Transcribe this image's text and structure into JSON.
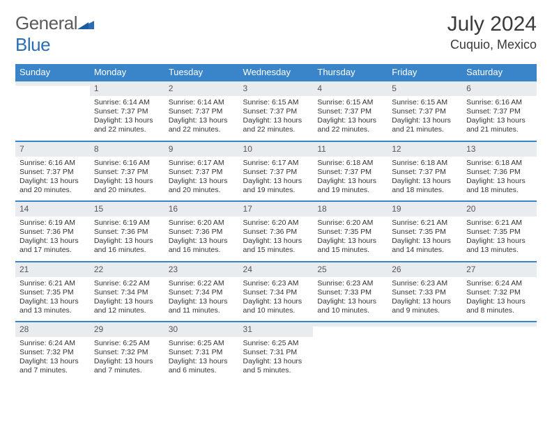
{
  "brand": {
    "part1": "General",
    "part2": "Blue",
    "text_color": "#5a5a5a",
    "accent_color": "#2a6db5"
  },
  "title": {
    "month": "July 2024",
    "location": "Cuquio, Mexico"
  },
  "colors": {
    "header_bg": "#3a85c9",
    "header_text": "#ffffff",
    "daynum_bg": "#e9ecef",
    "border": "#3a85c9",
    "body_text": "#333333"
  },
  "weekdays": [
    "Sunday",
    "Monday",
    "Tuesday",
    "Wednesday",
    "Thursday",
    "Friday",
    "Saturday"
  ],
  "weeks": [
    [
      {
        "n": "",
        "sunrise": "",
        "sunset": "",
        "daylight": ""
      },
      {
        "n": "1",
        "sunrise": "Sunrise: 6:14 AM",
        "sunset": "Sunset: 7:37 PM",
        "daylight": "Daylight: 13 hours and 22 minutes."
      },
      {
        "n": "2",
        "sunrise": "Sunrise: 6:14 AM",
        "sunset": "Sunset: 7:37 PM",
        "daylight": "Daylight: 13 hours and 22 minutes."
      },
      {
        "n": "3",
        "sunrise": "Sunrise: 6:15 AM",
        "sunset": "Sunset: 7:37 PM",
        "daylight": "Daylight: 13 hours and 22 minutes."
      },
      {
        "n": "4",
        "sunrise": "Sunrise: 6:15 AM",
        "sunset": "Sunset: 7:37 PM",
        "daylight": "Daylight: 13 hours and 22 minutes."
      },
      {
        "n": "5",
        "sunrise": "Sunrise: 6:15 AM",
        "sunset": "Sunset: 7:37 PM",
        "daylight": "Daylight: 13 hours and 21 minutes."
      },
      {
        "n": "6",
        "sunrise": "Sunrise: 6:16 AM",
        "sunset": "Sunset: 7:37 PM",
        "daylight": "Daylight: 13 hours and 21 minutes."
      }
    ],
    [
      {
        "n": "7",
        "sunrise": "Sunrise: 6:16 AM",
        "sunset": "Sunset: 7:37 PM",
        "daylight": "Daylight: 13 hours and 20 minutes."
      },
      {
        "n": "8",
        "sunrise": "Sunrise: 6:16 AM",
        "sunset": "Sunset: 7:37 PM",
        "daylight": "Daylight: 13 hours and 20 minutes."
      },
      {
        "n": "9",
        "sunrise": "Sunrise: 6:17 AM",
        "sunset": "Sunset: 7:37 PM",
        "daylight": "Daylight: 13 hours and 20 minutes."
      },
      {
        "n": "10",
        "sunrise": "Sunrise: 6:17 AM",
        "sunset": "Sunset: 7:37 PM",
        "daylight": "Daylight: 13 hours and 19 minutes."
      },
      {
        "n": "11",
        "sunrise": "Sunrise: 6:18 AM",
        "sunset": "Sunset: 7:37 PM",
        "daylight": "Daylight: 13 hours and 19 minutes."
      },
      {
        "n": "12",
        "sunrise": "Sunrise: 6:18 AM",
        "sunset": "Sunset: 7:37 PM",
        "daylight": "Daylight: 13 hours and 18 minutes."
      },
      {
        "n": "13",
        "sunrise": "Sunrise: 6:18 AM",
        "sunset": "Sunset: 7:36 PM",
        "daylight": "Daylight: 13 hours and 18 minutes."
      }
    ],
    [
      {
        "n": "14",
        "sunrise": "Sunrise: 6:19 AM",
        "sunset": "Sunset: 7:36 PM",
        "daylight": "Daylight: 13 hours and 17 minutes."
      },
      {
        "n": "15",
        "sunrise": "Sunrise: 6:19 AM",
        "sunset": "Sunset: 7:36 PM",
        "daylight": "Daylight: 13 hours and 16 minutes."
      },
      {
        "n": "16",
        "sunrise": "Sunrise: 6:20 AM",
        "sunset": "Sunset: 7:36 PM",
        "daylight": "Daylight: 13 hours and 16 minutes."
      },
      {
        "n": "17",
        "sunrise": "Sunrise: 6:20 AM",
        "sunset": "Sunset: 7:36 PM",
        "daylight": "Daylight: 13 hours and 15 minutes."
      },
      {
        "n": "18",
        "sunrise": "Sunrise: 6:20 AM",
        "sunset": "Sunset: 7:35 PM",
        "daylight": "Daylight: 13 hours and 15 minutes."
      },
      {
        "n": "19",
        "sunrise": "Sunrise: 6:21 AM",
        "sunset": "Sunset: 7:35 PM",
        "daylight": "Daylight: 13 hours and 14 minutes."
      },
      {
        "n": "20",
        "sunrise": "Sunrise: 6:21 AM",
        "sunset": "Sunset: 7:35 PM",
        "daylight": "Daylight: 13 hours and 13 minutes."
      }
    ],
    [
      {
        "n": "21",
        "sunrise": "Sunrise: 6:21 AM",
        "sunset": "Sunset: 7:35 PM",
        "daylight": "Daylight: 13 hours and 13 minutes."
      },
      {
        "n": "22",
        "sunrise": "Sunrise: 6:22 AM",
        "sunset": "Sunset: 7:34 PM",
        "daylight": "Daylight: 13 hours and 12 minutes."
      },
      {
        "n": "23",
        "sunrise": "Sunrise: 6:22 AM",
        "sunset": "Sunset: 7:34 PM",
        "daylight": "Daylight: 13 hours and 11 minutes."
      },
      {
        "n": "24",
        "sunrise": "Sunrise: 6:23 AM",
        "sunset": "Sunset: 7:34 PM",
        "daylight": "Daylight: 13 hours and 10 minutes."
      },
      {
        "n": "25",
        "sunrise": "Sunrise: 6:23 AM",
        "sunset": "Sunset: 7:33 PM",
        "daylight": "Daylight: 13 hours and 10 minutes."
      },
      {
        "n": "26",
        "sunrise": "Sunrise: 6:23 AM",
        "sunset": "Sunset: 7:33 PM",
        "daylight": "Daylight: 13 hours and 9 minutes."
      },
      {
        "n": "27",
        "sunrise": "Sunrise: 6:24 AM",
        "sunset": "Sunset: 7:32 PM",
        "daylight": "Daylight: 13 hours and 8 minutes."
      }
    ],
    [
      {
        "n": "28",
        "sunrise": "Sunrise: 6:24 AM",
        "sunset": "Sunset: 7:32 PM",
        "daylight": "Daylight: 13 hours and 7 minutes."
      },
      {
        "n": "29",
        "sunrise": "Sunrise: 6:25 AM",
        "sunset": "Sunset: 7:32 PM",
        "daylight": "Daylight: 13 hours and 7 minutes."
      },
      {
        "n": "30",
        "sunrise": "Sunrise: 6:25 AM",
        "sunset": "Sunset: 7:31 PM",
        "daylight": "Daylight: 13 hours and 6 minutes."
      },
      {
        "n": "31",
        "sunrise": "Sunrise: 6:25 AM",
        "sunset": "Sunset: 7:31 PM",
        "daylight": "Daylight: 13 hours and 5 minutes."
      },
      {
        "n": "",
        "sunrise": "",
        "sunset": "",
        "daylight": ""
      },
      {
        "n": "",
        "sunrise": "",
        "sunset": "",
        "daylight": ""
      },
      {
        "n": "",
        "sunrise": "",
        "sunset": "",
        "daylight": ""
      }
    ]
  ]
}
